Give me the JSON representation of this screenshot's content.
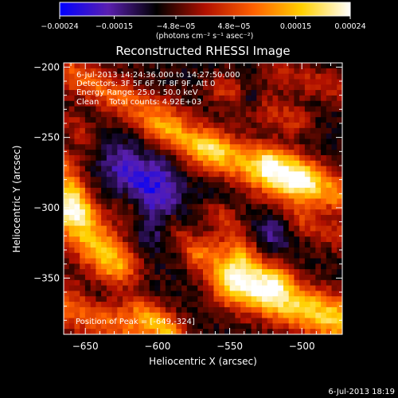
{
  "chart_data": {
    "type": "heatmap",
    "title": "Reconstructed RHESSI Image",
    "xlabel": "Heliocentric X (arcsec)",
    "ylabel": "Heliocentric Y (arcsec)",
    "xlim": [
      -665,
      -472
    ],
    "ylim": [
      -390,
      -197
    ],
    "x_ticks": [
      -650,
      -600,
      -550,
      -500
    ],
    "y_ticks": [
      -200,
      -250,
      -300,
      -350
    ],
    "x_tick_labels": [
      "−650",
      "−600",
      "−550",
      "−500"
    ],
    "y_tick_labels": [
      "−200",
      "−250",
      "−300",
      "−350"
    ],
    "annotations": [
      "6-Jul-2013 14:24:36.000 to 14:27:50.000",
      "Detectors: 3F 5F 6F 7F 8F 9F, Att 0",
      "Energy Range: 25.0 - 50.0 keV",
      "Clean    Total counts: 4.92E+03"
    ],
    "peak_label": "Position of Peak = [-649,-324]",
    "peak": [
      -649,
      -324
    ],
    "colorbar": {
      "ticks": [
        "−0.00024",
        "−0.00015",
        "−4.8e−05",
        "4.8e−05",
        "0.00015",
        "0.00024"
      ],
      "tick_values": [
        -0.00024,
        -0.00015,
        -4.8e-05,
        4.8e-05,
        0.00015,
        0.00024
      ],
      "range": [
        -0.00024,
        0.00024
      ],
      "unit": "(photons cm⁻² s⁻¹ asec⁻²)",
      "colors": [
        "#0000ff",
        "#5a1fb0",
        "#000000",
        "#b01000",
        "#ff6000",
        "#ffd000",
        "#ffffff"
      ]
    },
    "bands": [
      {
        "x0": -660,
        "y0": -205,
        "x1": -590,
        "y1": -240,
        "w": 10,
        "a": 0.00014
      },
      {
        "x0": -600,
        "y0": -245,
        "x1": -560,
        "y1": -260,
        "w": 7,
        "a": 9e-05
      },
      {
        "x0": -565,
        "y0": -258,
        "x1": -505,
        "y1": -283,
        "w": 12,
        "a": 0.00018
      },
      {
        "x0": -520,
        "y0": -270,
        "x1": -475,
        "y1": -290,
        "w": 10,
        "a": 0.00017
      },
      {
        "x0": -555,
        "y0": -215,
        "x1": -505,
        "y1": -238,
        "w": 8,
        "a": 9e-05
      },
      {
        "x0": -515,
        "y0": -205,
        "x1": -475,
        "y1": -215,
        "w": 8,
        "a": 8e-05
      },
      {
        "x0": -665,
        "y0": -300,
        "x1": -630,
        "y1": -340,
        "w": 12,
        "a": 0.00022
      },
      {
        "x0": -665,
        "y0": -270,
        "x1": -655,
        "y1": -300,
        "w": 8,
        "a": 0.00012
      },
      {
        "x0": -620,
        "y0": -300,
        "x1": -595,
        "y1": -320,
        "w": 8,
        "a": 8e-05
      },
      {
        "x0": -560,
        "y0": -300,
        "x1": -540,
        "y1": -330,
        "w": 8,
        "a": 9e-05
      },
      {
        "x0": -590,
        "y0": -310,
        "x1": -575,
        "y1": -330,
        "w": 6,
        "a": 8e-05
      },
      {
        "x0": -565,
        "y0": -335,
        "x1": -520,
        "y1": -352,
        "w": 10,
        "a": 0.00013
      },
      {
        "x0": -545,
        "y0": -355,
        "x1": -475,
        "y1": -380,
        "w": 12,
        "a": 0.00024
      },
      {
        "x0": -665,
        "y0": -370,
        "x1": -600,
        "y1": -390,
        "w": 12,
        "a": 0.00015
      },
      {
        "x0": -610,
        "y0": -372,
        "x1": -590,
        "y1": -388,
        "w": 6,
        "a": 9e-05
      },
      {
        "x0": -500,
        "y0": -310,
        "x1": -475,
        "y1": -320,
        "w": 8,
        "a": 9e-05
      },
      {
        "x0": -660,
        "y0": -240,
        "x1": -650,
        "y1": -250,
        "w": 6,
        "a": 7e-05
      }
    ],
    "spots": [
      {
        "x": -605,
        "y": -285,
        "r": 14,
        "a": -0.00013
      },
      {
        "x": -600,
        "y": -315,
        "r": 12,
        "a": -0.00012
      },
      {
        "x": -625,
        "y": -268,
        "r": 10,
        "a": -8e-05
      },
      {
        "x": -535,
        "y": -222,
        "r": 6,
        "a": -0.0001
      },
      {
        "x": -560,
        "y": -290,
        "r": 8,
        "a": -6e-05
      },
      {
        "x": -520,
        "y": -320,
        "r": 10,
        "a": -7e-05
      },
      {
        "x": -640,
        "y": -360,
        "r": 10,
        "a": -7e-05
      }
    ]
  },
  "footer": {
    "timestamp": "6-Jul-2013 18:19"
  }
}
